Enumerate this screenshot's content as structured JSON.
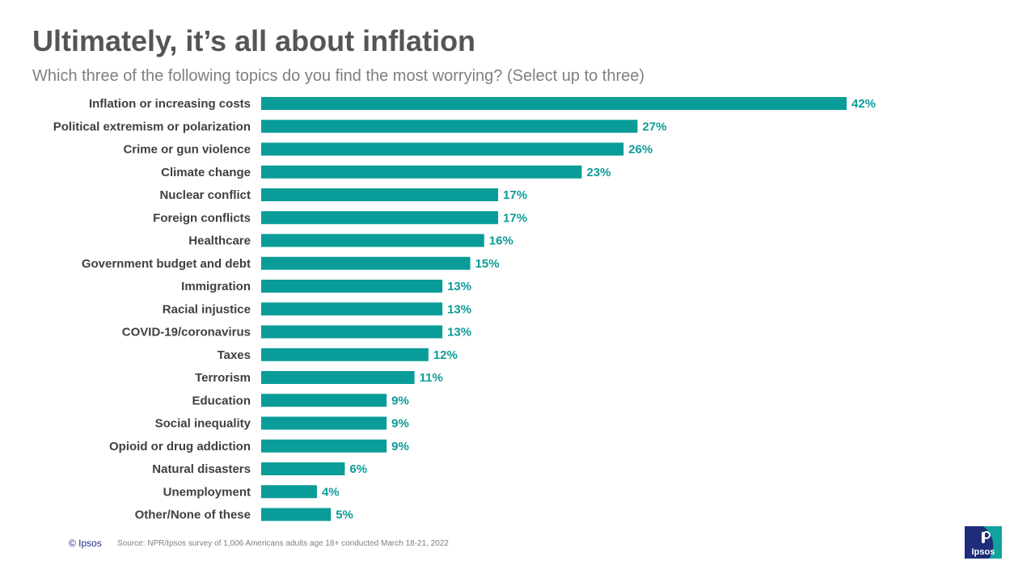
{
  "title": "Ultimately, it’s all about inflation",
  "subtitle": "Which three of the following topics do you find the most worrying? (Select up to three)",
  "footer": {
    "copyright": "© Ipsos",
    "source": "Source: NPR/Ipsos  survey of 1,006 Americans adults age 18+ conducted March 18-21, 2022"
  },
  "logo": {
    "text": "Ipsos"
  },
  "colors": {
    "bar": "#0a9c98",
    "label": "#404040",
    "value": "#0a9c98"
  },
  "chart_data": {
    "type": "bar",
    "orientation": "horizontal",
    "title": "Ultimately, it’s all about inflation",
    "xlabel": "",
    "ylabel": "",
    "value_suffix": "%",
    "xlim": [
      0,
      42
    ],
    "grid": false,
    "categories": [
      "Inflation or increasing costs",
      "Political extremism or polarization",
      "Crime or gun violence",
      "Climate change",
      "Nuclear conflict",
      "Foreign conflicts",
      "Healthcare",
      "Government budget and debt",
      "Immigration",
      "Racial injustice",
      "COVID-19/coronavirus",
      "Taxes",
      "Terrorism",
      "Education",
      "Social inequality",
      "Opioid or drug addiction",
      "Natural disasters",
      "Unemployment",
      "Other/None of these"
    ],
    "values": [
      42,
      27,
      26,
      23,
      17,
      17,
      16,
      15,
      13,
      13,
      13,
      12,
      11,
      9,
      9,
      9,
      6,
      4,
      5
    ]
  }
}
